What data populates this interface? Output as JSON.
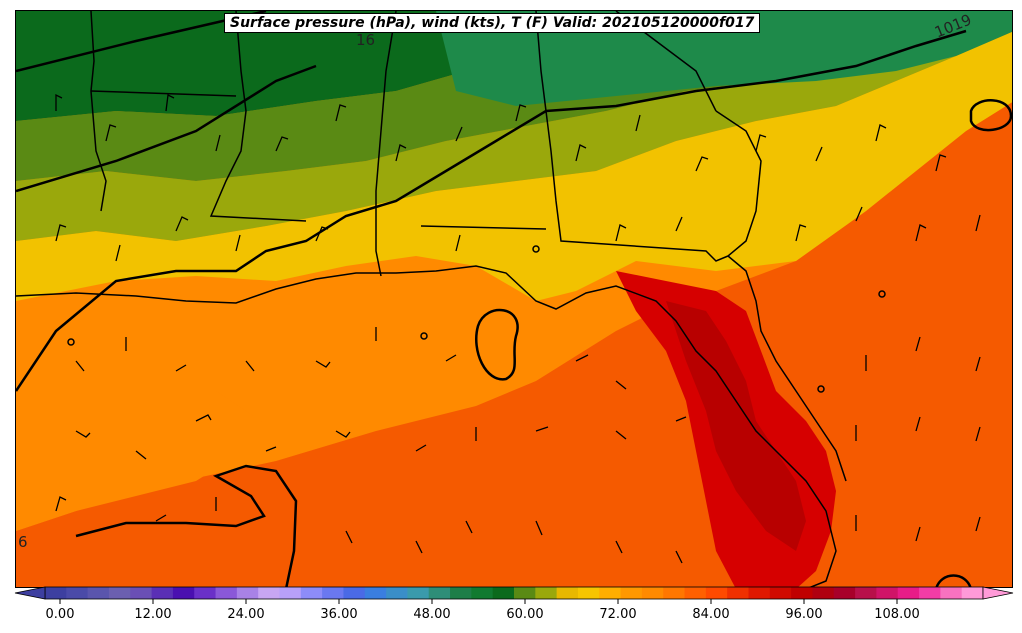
{
  "title": "Surface pressure (hPa), wind (kts), T (F) Valid: 202105120000f017",
  "isobar_labels": [
    {
      "text": "1019",
      "id": "isobar-label-1019"
    },
    {
      "text": "16",
      "id": "isobar-label-16-top"
    },
    {
      "text": "6",
      "id": "isobar-label-16-left"
    }
  ],
  "colorbar": {
    "ticks": [
      "0.00",
      "12.00",
      "24.00",
      "36.00",
      "48.00",
      "60.00",
      "72.00",
      "84.00",
      "96.00",
      "108.00"
    ],
    "colors": [
      "#3d3fa0",
      "#4a4aa8",
      "#5a55ad",
      "#6b5fb0",
      "#6a4fb5",
      "#5a2fb5",
      "#4a10b0",
      "#6a30c8",
      "#8a58d8",
      "#a882e6",
      "#c8a6f2",
      "#b8a0f8",
      "#8d8cf8",
      "#6a78f0",
      "#4a6ae6",
      "#3a7ee0",
      "#3a8ec8",
      "#3a9aac",
      "#2e8e78",
      "#1e7e48",
      "#117a30",
      "#0b6a1c",
      "#5a8a14",
      "#9aa80c",
      "#e8b800",
      "#f7c500",
      "#ffae00",
      "#ff9800",
      "#ff8a00",
      "#ff7700",
      "#ff6000",
      "#ff4a00",
      "#f03000",
      "#e01800",
      "#d00a00",
      "#c00000",
      "#b00010",
      "#a8002a",
      "#b8104a",
      "#d01468",
      "#e81c88",
      "#f23ca6",
      "#f872c0",
      "#ff9ad8"
    ],
    "accent_colors": {
      "land_dark_green": "#0b6a1c",
      "green": "#1e8a4a",
      "olive": "#5a8a14",
      "yellow": "#f2c200",
      "orange": "#ff8a00",
      "red_orange": "#f55a00",
      "red": "#d60000",
      "dark_red": "#b80000"
    }
  }
}
